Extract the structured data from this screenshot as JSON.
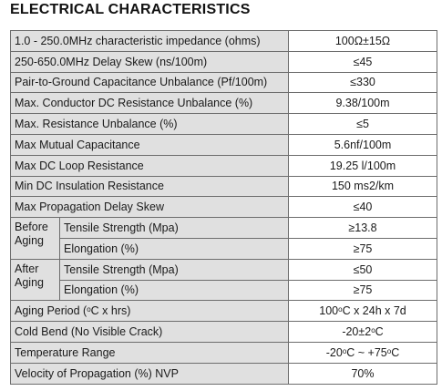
{
  "title": "ELECTRICAL CHARACTERISTICS",
  "rows": [
    {
      "label": "1.0 - 250.0MHz characteristic impedance (ohms)",
      "value": "100Ω±15Ω"
    },
    {
      "label": "250-650.0MHz Delay Skew (ns/100m)",
      "value": "≤45"
    },
    {
      "label": "Pair-to-Ground Capacitance Unbalance (Pf/100m)",
      "value": "≤330"
    },
    {
      "label": "Max. Conductor DC Resistance Unbalance (%)",
      "value": "9.38/100m"
    },
    {
      "label": "Max. Resistance Unbalance (%)",
      "value": "≤5"
    },
    {
      "label": "Max Mutual Capacitance",
      "value": "5.6nf/100m"
    },
    {
      "label": "Max DC Loop Resistance",
      "value": "19.25 l/100m"
    },
    {
      "label": "Min DC Insulation Resistance",
      "value": "150 ms2/km"
    },
    {
      "label": "Max Propagation Delay Skew",
      "value": "≤40"
    }
  ],
  "before_aging": {
    "group": "Before Aging",
    "tensile_label": "Tensile Strength (Mpa)",
    "tensile_value": "≥13.8",
    "elongation_label": "Elongation (%)",
    "elongation_value": "≥75"
  },
  "after_aging": {
    "group": "After Aging",
    "tensile_label": "Tensile Strength (Mpa)",
    "tensile_value": "≤50",
    "elongation_label": "Elongation (%)",
    "elongation_value": "≥75"
  },
  "aging_period": {
    "label_a": "Aging Period (",
    "deg": "o",
    "label_b": "C x hrs)",
    "value_a": "100",
    "value_deg": "o",
    "value_b": "C x 24h x 7d"
  },
  "cold_bend": {
    "label": "Cold Bend (No Visible Crack)",
    "value_a": "-20±2",
    "value_deg": "o",
    "value_b": "C"
  },
  "temp_range": {
    "label": "Temperature Range",
    "value_a": "-20",
    "value_deg1": "o",
    "value_b": "C ~ +75",
    "value_deg2": "o",
    "value_c": "C"
  },
  "nvp": {
    "label": "Velocity of Propagation (%) NVP",
    "value": "70%"
  }
}
